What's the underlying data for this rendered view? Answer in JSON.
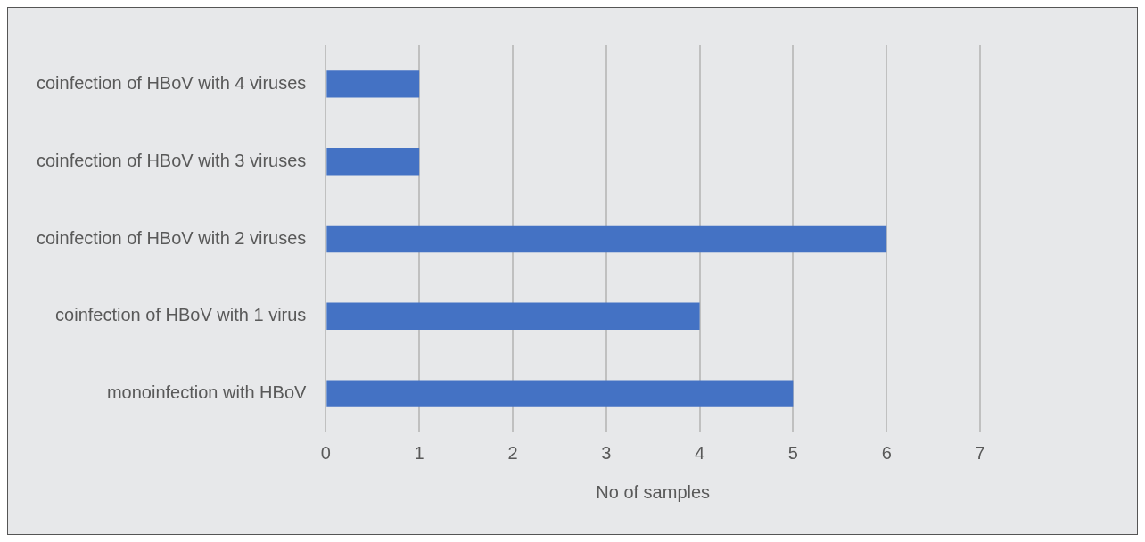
{
  "chart_data": {
    "type": "bar",
    "orientation": "horizontal",
    "xlabel": "No of samples",
    "categories": [
      "coinfection of HBoV with 4 viruses",
      "coinfection of HBoV with 3 viruses",
      "coinfection of HBoV with 2 viruses",
      "coinfection of HBoV with 1 virus",
      "monoinfection with HBoV"
    ],
    "values": [
      1,
      1,
      6,
      4,
      5
    ],
    "color": "#4472c4",
    "xlim": [
      0,
      7
    ],
    "xticks": [
      0,
      1,
      2,
      3,
      4,
      5,
      6,
      7
    ],
    "grid": "x",
    "legend": false
  }
}
